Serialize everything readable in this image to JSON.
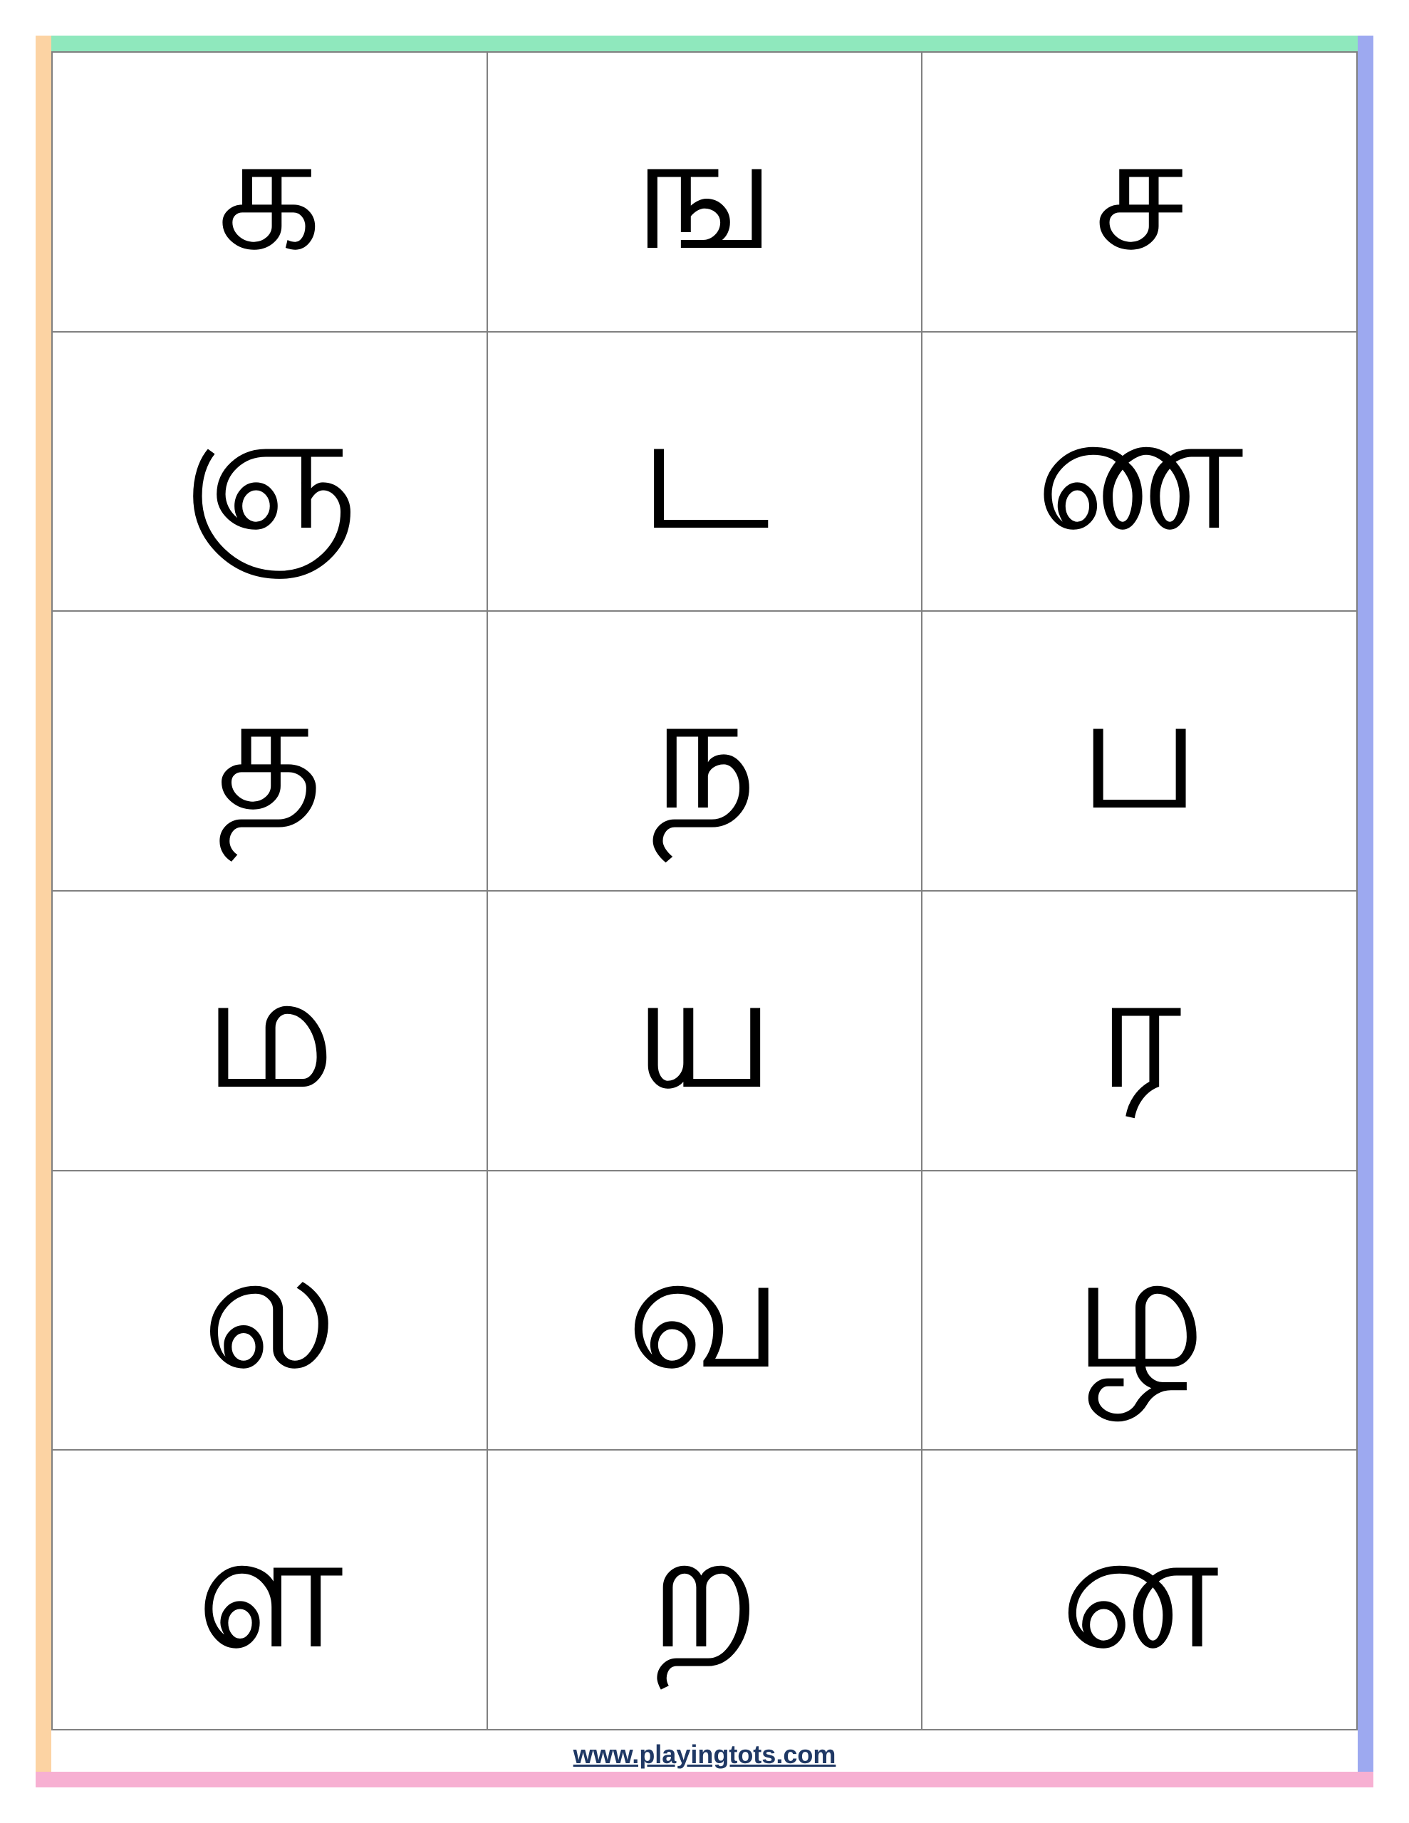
{
  "grid": {
    "rows": 6,
    "columns": 3,
    "letters": [
      "க",
      "ங",
      "ச",
      "ஞ",
      "ட",
      "ண",
      "த",
      "ந",
      "ப",
      "ம",
      "ய",
      "ர",
      "ல",
      "வ",
      "ழ",
      "ள",
      "ற",
      "ன"
    ],
    "letter_color": "#000000",
    "letter_fontsize": 230,
    "border_color": "#808080",
    "background_color": "#ffffff"
  },
  "frame": {
    "border_width": 22,
    "top_color": "#8fe8bd",
    "left_color": "#fcd3a3",
    "right_color": "#9da9f0",
    "bottom_color": "#f7b0d2"
  },
  "footer": {
    "url_text": "www.playingtots.com",
    "color": "#1f3864",
    "fontsize": 36
  }
}
